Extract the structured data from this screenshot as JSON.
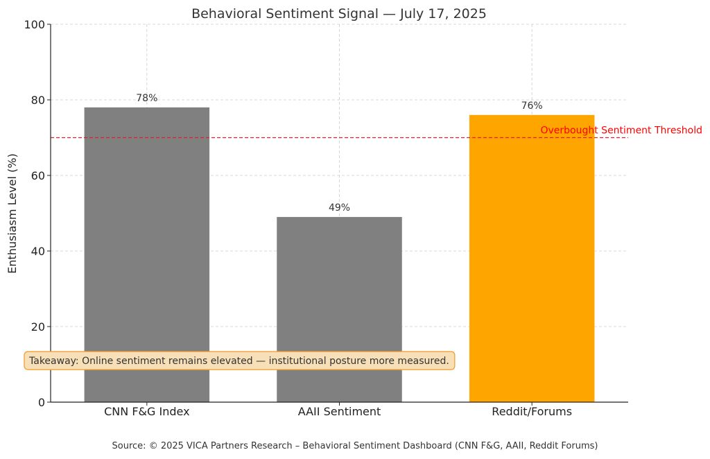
{
  "colors": {
    "bar_default": "#808080",
    "bar_highlight": "#FFA500",
    "threshold_line": "#E0202F",
    "threshold_text": "#FF0000",
    "annotation_fill": "#F7DFB8",
    "annotation_border": "#F0A030",
    "grid": "#cccccc"
  },
  "chart_data": {
    "type": "bar",
    "title": "Behavioral Sentiment Signal — July 17, 2025",
    "xlabel": "",
    "ylabel": "Enthusiasm Level (%)",
    "categories": [
      "CNN F&G Index",
      "AAII Sentiment",
      "Reddit/Forums"
    ],
    "values": [
      78,
      49,
      76
    ],
    "data_labels": [
      "78%",
      "49%",
      "76%"
    ],
    "highlighted_category": "Reddit/Forums",
    "ylim": [
      0,
      100
    ],
    "yticks": [
      0,
      20,
      40,
      60,
      80,
      100
    ],
    "grid": true,
    "threshold": {
      "value": 70,
      "label": "Overbought Sentiment Threshold",
      "style": "dashed"
    },
    "annotation": {
      "text": "Takeaway: Online sentiment remains elevated — institutional posture more measured.",
      "y": 11
    }
  },
  "source": "Source: © 2025 VICA Partners Research – Behavioral Sentiment Dashboard (CNN F&G, AAII, Reddit Forums)"
}
